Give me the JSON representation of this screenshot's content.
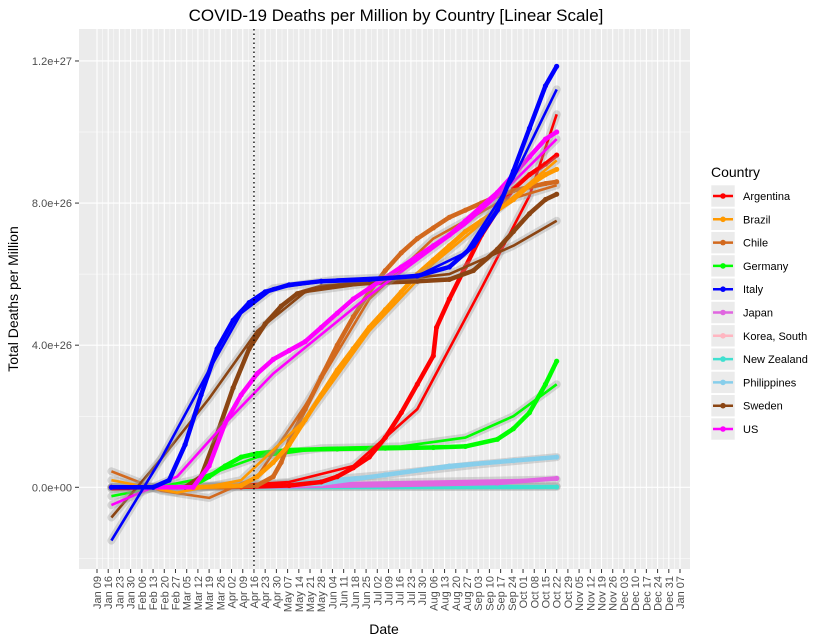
{
  "chart_data": {
    "type": "line",
    "title": "COVID-19 Deaths per Million by Country [Linear Scale]",
    "xlabel": "Date",
    "ylabel": "Total Deaths per Million",
    "x_ticks": [
      "Jan 09",
      "Jan 16",
      "Jan 23",
      "Jan 30",
      "Feb 06",
      "Feb 13",
      "Feb 20",
      "Feb 27",
      "Mar 05",
      "Mar 12",
      "Mar 19",
      "Mar 26",
      "Apr 02",
      "Apr 09",
      "Apr 16",
      "Apr 23",
      "Apr 30",
      "May 07",
      "May 14",
      "May 21",
      "May 28",
      "Jun 04",
      "Jun 11",
      "Jun 18",
      "Jun 25",
      "Jul 02",
      "Jul 09",
      "Jul 16",
      "Jul 23",
      "Jul 30",
      "Aug 06",
      "Aug 13",
      "Aug 20",
      "Aug 27",
      "Sep 03",
      "Sep 10",
      "Sep 17",
      "Sep 24",
      "Oct 01",
      "Oct 08",
      "Oct 15",
      "Oct 22",
      "Oct 29",
      "Nov 05",
      "Nov 12",
      "Nov 19",
      "Nov 26",
      "Dec 03",
      "Dec 10",
      "Dec 17",
      "Dec 24",
      "Dec 31",
      "Jan 07"
    ],
    "y_ticks": [
      "0.0e+00",
      "4.0e+26",
      "8.0e+26",
      "1.2e+27"
    ],
    "y_tick_values": [
      0,
      4e+26,
      8e+26,
      1.2e+27
    ],
    "ylim": [
      -2.3e+26,
      1.29e+27
    ],
    "x_range_days": [
      0,
      364
    ],
    "vline_date": "Apr 16",
    "legend_title": "Country",
    "legend_position": "right",
    "grid": true,
    "series": [
      {
        "name": "Argentina",
        "color": "#ff0000",
        "points": [
          [
            9,
            0
          ],
          [
            30,
            0
          ],
          [
            60,
            0
          ],
          [
            90,
            1e+24
          ],
          [
            120,
            5e+24
          ],
          [
            140,
            1.5e+25
          ],
          [
            150,
            3e+25
          ],
          [
            160,
            5.5e+25
          ],
          [
            170,
            8.5e+25
          ],
          [
            180,
            1.4e+26
          ],
          [
            190,
            2.1e+26
          ],
          [
            200,
            2.9e+26
          ],
          [
            210,
            3.7e+26
          ],
          [
            212,
            4.5e+26
          ],
          [
            220,
            5.3e+26
          ],
          [
            230,
            6.2e+26
          ],
          [
            240,
            7.1e+26
          ],
          [
            250,
            7.8e+26
          ],
          [
            260,
            8.4e+26
          ],
          [
            270,
            8.8e+26
          ],
          [
            280,
            9.1e+26
          ],
          [
            287,
            9.35e+26
          ]
        ],
        "fit": [
          [
            9,
            -5e+24
          ],
          [
            60,
            -2e+24
          ],
          [
            120,
            1.5e+25
          ],
          [
            160,
            6e+25
          ],
          [
            200,
            2.2e+26
          ],
          [
            240,
            5.6e+26
          ],
          [
            270,
            8.2e+26
          ],
          [
            287,
            1.05e+27
          ]
        ]
      },
      {
        "name": "Brazil",
        "color": "#ff9900",
        "points": [
          [
            9,
            0
          ],
          [
            60,
            0
          ],
          [
            90,
            5e+24
          ],
          [
            100,
            3e+25
          ],
          [
            110,
            7e+25
          ],
          [
            120,
            1.2e+26
          ],
          [
            130,
            1.9e+26
          ],
          [
            140,
            2.6e+26
          ],
          [
            150,
            3.3e+26
          ],
          [
            160,
            3.9e+26
          ],
          [
            170,
            4.5e+26
          ],
          [
            180,
            5e+26
          ],
          [
            190,
            5.5e+26
          ],
          [
            200,
            6e+26
          ],
          [
            210,
            6.4e+26
          ],
          [
            220,
            6.8e+26
          ],
          [
            230,
            7.2e+26
          ],
          [
            240,
            7.5e+26
          ],
          [
            250,
            7.8e+26
          ],
          [
            260,
            8.1e+26
          ],
          [
            270,
            8.5e+26
          ],
          [
            280,
            8.8e+26
          ],
          [
            287,
            8.95e+26
          ]
        ],
        "fit": [
          [
            9,
            2e+25
          ],
          [
            50,
            -1.5e+25
          ],
          [
            90,
            2e+25
          ],
          [
            130,
            1.9e+26
          ],
          [
            170,
            4.4e+26
          ],
          [
            210,
            6.3e+26
          ],
          [
            250,
            7.8e+26
          ],
          [
            287,
            9.2e+26
          ]
        ]
      },
      {
        "name": "Chile",
        "color": "#d2691e",
        "points": [
          [
            9,
            0
          ],
          [
            80,
            0
          ],
          [
            100,
            5e+24
          ],
          [
            110,
            3e+25
          ],
          [
            115,
            7e+25
          ],
          [
            120,
            1.3e+26
          ],
          [
            130,
            2.2e+26
          ],
          [
            140,
            3.1e+26
          ],
          [
            150,
            4e+26
          ],
          [
            160,
            4.8e+26
          ],
          [
            170,
            5.5e+26
          ],
          [
            180,
            6.1e+26
          ],
          [
            190,
            6.6e+26
          ],
          [
            200,
            7e+26
          ],
          [
            210,
            7.3e+26
          ],
          [
            220,
            7.6e+26
          ],
          [
            230,
            7.8e+26
          ],
          [
            240,
            8e+26
          ],
          [
            250,
            8.2e+26
          ],
          [
            260,
            8.35e+26
          ],
          [
            270,
            8.45e+26
          ],
          [
            280,
            8.55e+26
          ],
          [
            287,
            8.6e+26
          ]
        ],
        "fit": [
          [
            9,
            4.5e+25
          ],
          [
            40,
            -1e+25
          ],
          [
            70,
            -3e+25
          ],
          [
            100,
            3e+25
          ],
          [
            130,
            2.3e+26
          ],
          [
            170,
            5.3e+26
          ],
          [
            210,
            7e+26
          ],
          [
            250,
            8e+26
          ],
          [
            287,
            8.5e+26
          ]
        ]
      },
      {
        "name": "Germany",
        "color": "#00ff00",
        "points": [
          [
            9,
            0
          ],
          [
            50,
            0
          ],
          [
            60,
            5e+24
          ],
          [
            70,
            3e+25
          ],
          [
            80,
            6e+25
          ],
          [
            90,
            8.5e+25
          ],
          [
            100,
            9.5e+25
          ],
          [
            120,
            1.05e+26
          ],
          [
            150,
            1.08e+26
          ],
          [
            180,
            1.1e+26
          ],
          [
            210,
            1.12e+26
          ],
          [
            230,
            1.15e+26
          ],
          [
            250,
            1.35e+26
          ],
          [
            260,
            1.65e+26
          ],
          [
            270,
            2.1e+26
          ],
          [
            280,
            2.9e+26
          ],
          [
            287,
            3.55e+26
          ]
        ],
        "fit": [
          [
            9,
            -2.5e+25
          ],
          [
            60,
            2e+25
          ],
          [
            100,
            8.5e+25
          ],
          [
            140,
            1.1e+26
          ],
          [
            190,
            1.15e+26
          ],
          [
            230,
            1.4e+26
          ],
          [
            260,
            2e+26
          ],
          [
            287,
            2.9e+26
          ]
        ]
      },
      {
        "name": "Italy",
        "color": "#0000ff",
        "points": [
          [
            9,
            0
          ],
          [
            35,
            0
          ],
          [
            45,
            2e+25
          ],
          [
            55,
            1.2e+26
          ],
          [
            65,
            2.6e+26
          ],
          [
            75,
            3.9e+26
          ],
          [
            85,
            4.7e+26
          ],
          [
            95,
            5.2e+26
          ],
          [
            105,
            5.5e+26
          ],
          [
            120,
            5.7e+26
          ],
          [
            140,
            5.8e+26
          ],
          [
            170,
            5.85e+26
          ],
          [
            200,
            5.95e+26
          ],
          [
            220,
            6.2e+26
          ],
          [
            235,
            6.8e+26
          ],
          [
            250,
            7.8e+26
          ],
          [
            260,
            8.9e+26
          ],
          [
            270,
            1.01e+27
          ],
          [
            280,
            1.13e+27
          ],
          [
            287,
            1.185e+27
          ]
        ],
        "fit": [
          [
            9,
            -1.5e+26
          ],
          [
            40,
            8e+25
          ],
          [
            70,
            3.3e+26
          ],
          [
            90,
            4.9e+26
          ],
          [
            110,
            5.6e+26
          ],
          [
            150,
            5.85e+26
          ],
          [
            200,
            5.95e+26
          ],
          [
            230,
            6.6e+26
          ],
          [
            260,
            8.7e+26
          ],
          [
            287,
            1.12e+27
          ]
        ]
      },
      {
        "name": "Japan",
        "color": "#e066e0",
        "points": [
          [
            9,
            0
          ],
          [
            100,
            2e+24
          ],
          [
            180,
            6e+24
          ],
          [
            250,
            1.2e+25
          ],
          [
            287,
            2.5e+25
          ]
        ],
        "fit": [
          [
            9,
            0
          ],
          [
            287,
            2.2e+25
          ]
        ]
      },
      {
        "name": "Korea, South",
        "color": "#ffb6c1",
        "points": [
          [
            9,
            0
          ],
          [
            287,
            3e+24
          ]
        ],
        "fit": [
          [
            9,
            0
          ],
          [
            287,
            3e+24
          ]
        ]
      },
      {
        "name": "New Zealand",
        "color": "#40e0d0",
        "points": [
          [
            9,
            0
          ],
          [
            287,
            1e+24
          ]
        ],
        "fit": [
          [
            9,
            0
          ],
          [
            287,
            1e+24
          ]
        ]
      },
      {
        "name": "Philippines",
        "color": "#87ceeb",
        "points": [
          [
            9,
            0
          ],
          [
            80,
            3e+24
          ],
          [
            140,
            1e+25
          ],
          [
            180,
            3.5e+25
          ],
          [
            220,
            6e+25
          ],
          [
            260,
            7.5e+25
          ],
          [
            287,
            8.5e+25
          ]
        ],
        "fit": [
          [
            9,
            0
          ],
          [
            100,
            5e+24
          ],
          [
            180,
            3.5e+25
          ],
          [
            240,
            6.5e+25
          ],
          [
            287,
            8.5e+25
          ]
        ]
      },
      {
        "name": "Sweden",
        "color": "#8b4513",
        "points": [
          [
            9,
            0
          ],
          [
            55,
            0
          ],
          [
            65,
            3e+25
          ],
          [
            75,
            1.5e+26
          ],
          [
            85,
            2.8e+26
          ],
          [
            95,
            3.9e+26
          ],
          [
            105,
            4.6e+26
          ],
          [
            115,
            5.1e+26
          ],
          [
            125,
            5.45e+26
          ],
          [
            140,
            5.65e+26
          ],
          [
            170,
            5.75e+26
          ],
          [
            200,
            5.8e+26
          ],
          [
            220,
            5.85e+26
          ],
          [
            235,
            6.1e+26
          ],
          [
            250,
            6.7e+26
          ],
          [
            260,
            7.2e+26
          ],
          [
            270,
            7.7e+26
          ],
          [
            280,
            8.1e+26
          ],
          [
            287,
            8.25e+26
          ]
        ],
        "fit": [
          [
            9,
            -8.5e+25
          ],
          [
            40,
            8e+25
          ],
          [
            70,
            2.5e+26
          ],
          [
            100,
            4.4e+26
          ],
          [
            130,
            5.5e+26
          ],
          [
            170,
            5.75e+26
          ],
          [
            220,
            6e+26
          ],
          [
            260,
            6.8e+26
          ],
          [
            287,
            7.5e+26
          ]
        ]
      },
      {
        "name": "US",
        "color": "#ff00ff",
        "points": [
          [
            9,
            0
          ],
          [
            60,
            0
          ],
          [
            70,
            6e+25
          ],
          [
            80,
            1.8e+26
          ],
          [
            90,
            2.6e+26
          ],
          [
            100,
            3.2e+26
          ],
          [
            110,
            3.6e+26
          ],
          [
            120,
            3.85e+26
          ],
          [
            130,
            4.1e+26
          ],
          [
            140,
            4.5e+26
          ],
          [
            150,
            4.9e+26
          ],
          [
            160,
            5.3e+26
          ],
          [
            170,
            5.6e+26
          ],
          [
            180,
            5.9e+26
          ],
          [
            190,
            6.2e+26
          ],
          [
            200,
            6.5e+26
          ],
          [
            210,
            6.8e+26
          ],
          [
            220,
            7.1e+26
          ],
          [
            230,
            7.5e+26
          ],
          [
            240,
            7.9e+26
          ],
          [
            250,
            8.3e+26
          ],
          [
            260,
            8.8e+26
          ],
          [
            270,
            9.3e+26
          ],
          [
            280,
            9.8e+26
          ],
          [
            287,
            1e+27
          ]
        ],
        "fit": [
          [
            9,
            -5e+25
          ],
          [
            50,
            3e+25
          ],
          [
            80,
            1.8e+26
          ],
          [
            110,
            3.2e+26
          ],
          [
            140,
            4.3e+26
          ],
          [
            170,
            5.4e+26
          ],
          [
            200,
            6.4e+26
          ],
          [
            230,
            7.4e+26
          ],
          [
            260,
            8.6e+26
          ],
          [
            287,
            9.8e+26
          ]
        ]
      }
    ]
  }
}
